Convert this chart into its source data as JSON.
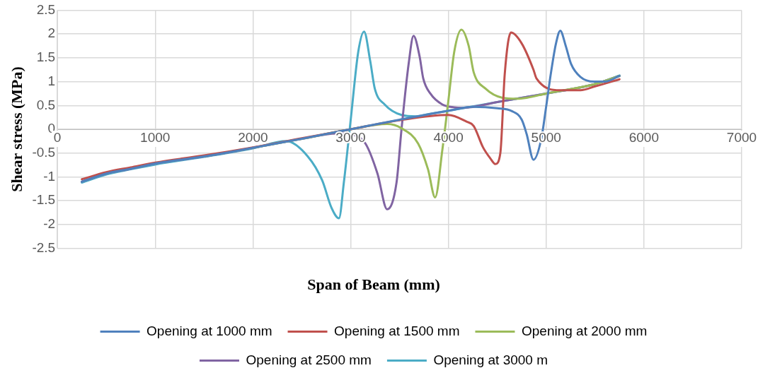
{
  "chart_data": {
    "type": "line",
    "xlabel": "Span of Beam (mm)",
    "ylabel": "Shear stress (MPa)",
    "xlim": [
      0,
      7000
    ],
    "xticks": [
      0,
      1000,
      2000,
      3000,
      4000,
      5000,
      6000,
      7000
    ],
    "ylim": [
      -2.5,
      2.5
    ],
    "yticks": [
      -2.5,
      -2,
      -1.5,
      -1,
      -0.5,
      0,
      0.5,
      1,
      1.5,
      2,
      2.5
    ],
    "grid": true,
    "legend": "bottom",
    "marker": "none",
    "line_style": "solid",
    "series": [
      {
        "name": "Opening at 1000 mm",
        "color": "#4f81bd",
        "x": [
          250,
          500,
          750,
          1000,
          1500,
          2000,
          2500,
          3000,
          3500,
          4000,
          4250,
          4500,
          4650,
          4750,
          4800,
          4870,
          4950,
          5000,
          5050,
          5100,
          5144,
          5200,
          5255,
          5350,
          5490,
          5600,
          5750
        ],
        "values": [
          -1.1,
          -0.93,
          -0.83,
          -0.72,
          -0.57,
          -0.39,
          -0.2,
          0,
          0.2,
          0.39,
          0.47,
          0.44,
          0.38,
          0.2,
          -0.1,
          -0.64,
          -0.2,
          0.48,
          1.2,
          1.8,
          2.07,
          1.75,
          1.37,
          1.1,
          1.0,
          1.0,
          1.12
        ]
      },
      {
        "name": "Opening at 1500 mm",
        "color": "#c0504d",
        "x": [
          250,
          500,
          750,
          1000,
          1500,
          2000,
          2500,
          3000,
          3500,
          4000,
          4185,
          4258,
          4354,
          4428,
          4480,
          4531,
          4576,
          4640,
          4750,
          4870,
          4900,
          5144,
          5350,
          5500,
          5750
        ],
        "values": [
          -1.05,
          -0.9,
          -0.8,
          -0.7,
          -0.55,
          -0.38,
          -0.19,
          0,
          0.19,
          0.3,
          0.16,
          0.07,
          -0.38,
          -0.61,
          -0.73,
          -0.5,
          1.16,
          2.03,
          1.8,
          1.25,
          1.07,
          0.82,
          0.82,
          0.9,
          1.05
        ]
      },
      {
        "name": "Opening at 2000 mm",
        "color": "#9bbb59",
        "x": [
          1500,
          2000,
          2500,
          3000,
          3373,
          3520,
          3690,
          3791,
          3864,
          3938,
          4000,
          4059,
          4133,
          4207,
          4258,
          4381,
          4554,
          4701,
          4800,
          5000,
          5500,
          5750
        ],
        "values": [
          -0.57,
          -0.39,
          -0.2,
          0,
          0.11,
          0.02,
          -0.3,
          -0.84,
          -1.43,
          -0.43,
          0.61,
          1.62,
          2.09,
          1.75,
          1.2,
          0.85,
          0.66,
          0.64,
          0.66,
          0.75,
          0.95,
          1.12
        ]
      },
      {
        "name": "Opening at 2500 mm",
        "color": "#8064a2",
        "x": [
          250,
          500,
          750,
          1000,
          1500,
          2000,
          2500,
          2856,
          3003,
          3151,
          3274,
          3373,
          3469,
          3520,
          3594,
          3643,
          3705,
          3742,
          3815,
          3938,
          4059,
          4150,
          4500,
          5000,
          5500,
          5750
        ],
        "values": [
          -1.1,
          -0.93,
          -0.83,
          -0.72,
          -0.57,
          -0.39,
          -0.2,
          -0.09,
          -0.11,
          -0.3,
          -0.93,
          -1.68,
          -1.12,
          0,
          1.39,
          1.96,
          1.53,
          1.07,
          0.75,
          0.52,
          0.46,
          0.45,
          0.57,
          0.75,
          0.95,
          1.12
        ]
      },
      {
        "name": "Opening at 3000 m",
        "color": "#4bacc6",
        "x": [
          250,
          500,
          750,
          1000,
          1500,
          2000,
          2339,
          2561,
          2708,
          2806,
          2880,
          2930,
          3003,
          3077,
          3137,
          3200,
          3247,
          3348,
          3520,
          3668,
          3800,
          4000,
          4500,
          5000,
          5500,
          5750
        ],
        "values": [
          -1.12,
          -0.95,
          -0.84,
          -0.74,
          -0.58,
          -0.4,
          -0.25,
          -0.57,
          -1.07,
          -1.66,
          -1.87,
          -1.12,
          0.25,
          1.62,
          2.05,
          1.43,
          0.85,
          0.52,
          0.3,
          0.27,
          0.32,
          0.39,
          0.57,
          0.75,
          0.95,
          1.13
        ]
      }
    ]
  }
}
